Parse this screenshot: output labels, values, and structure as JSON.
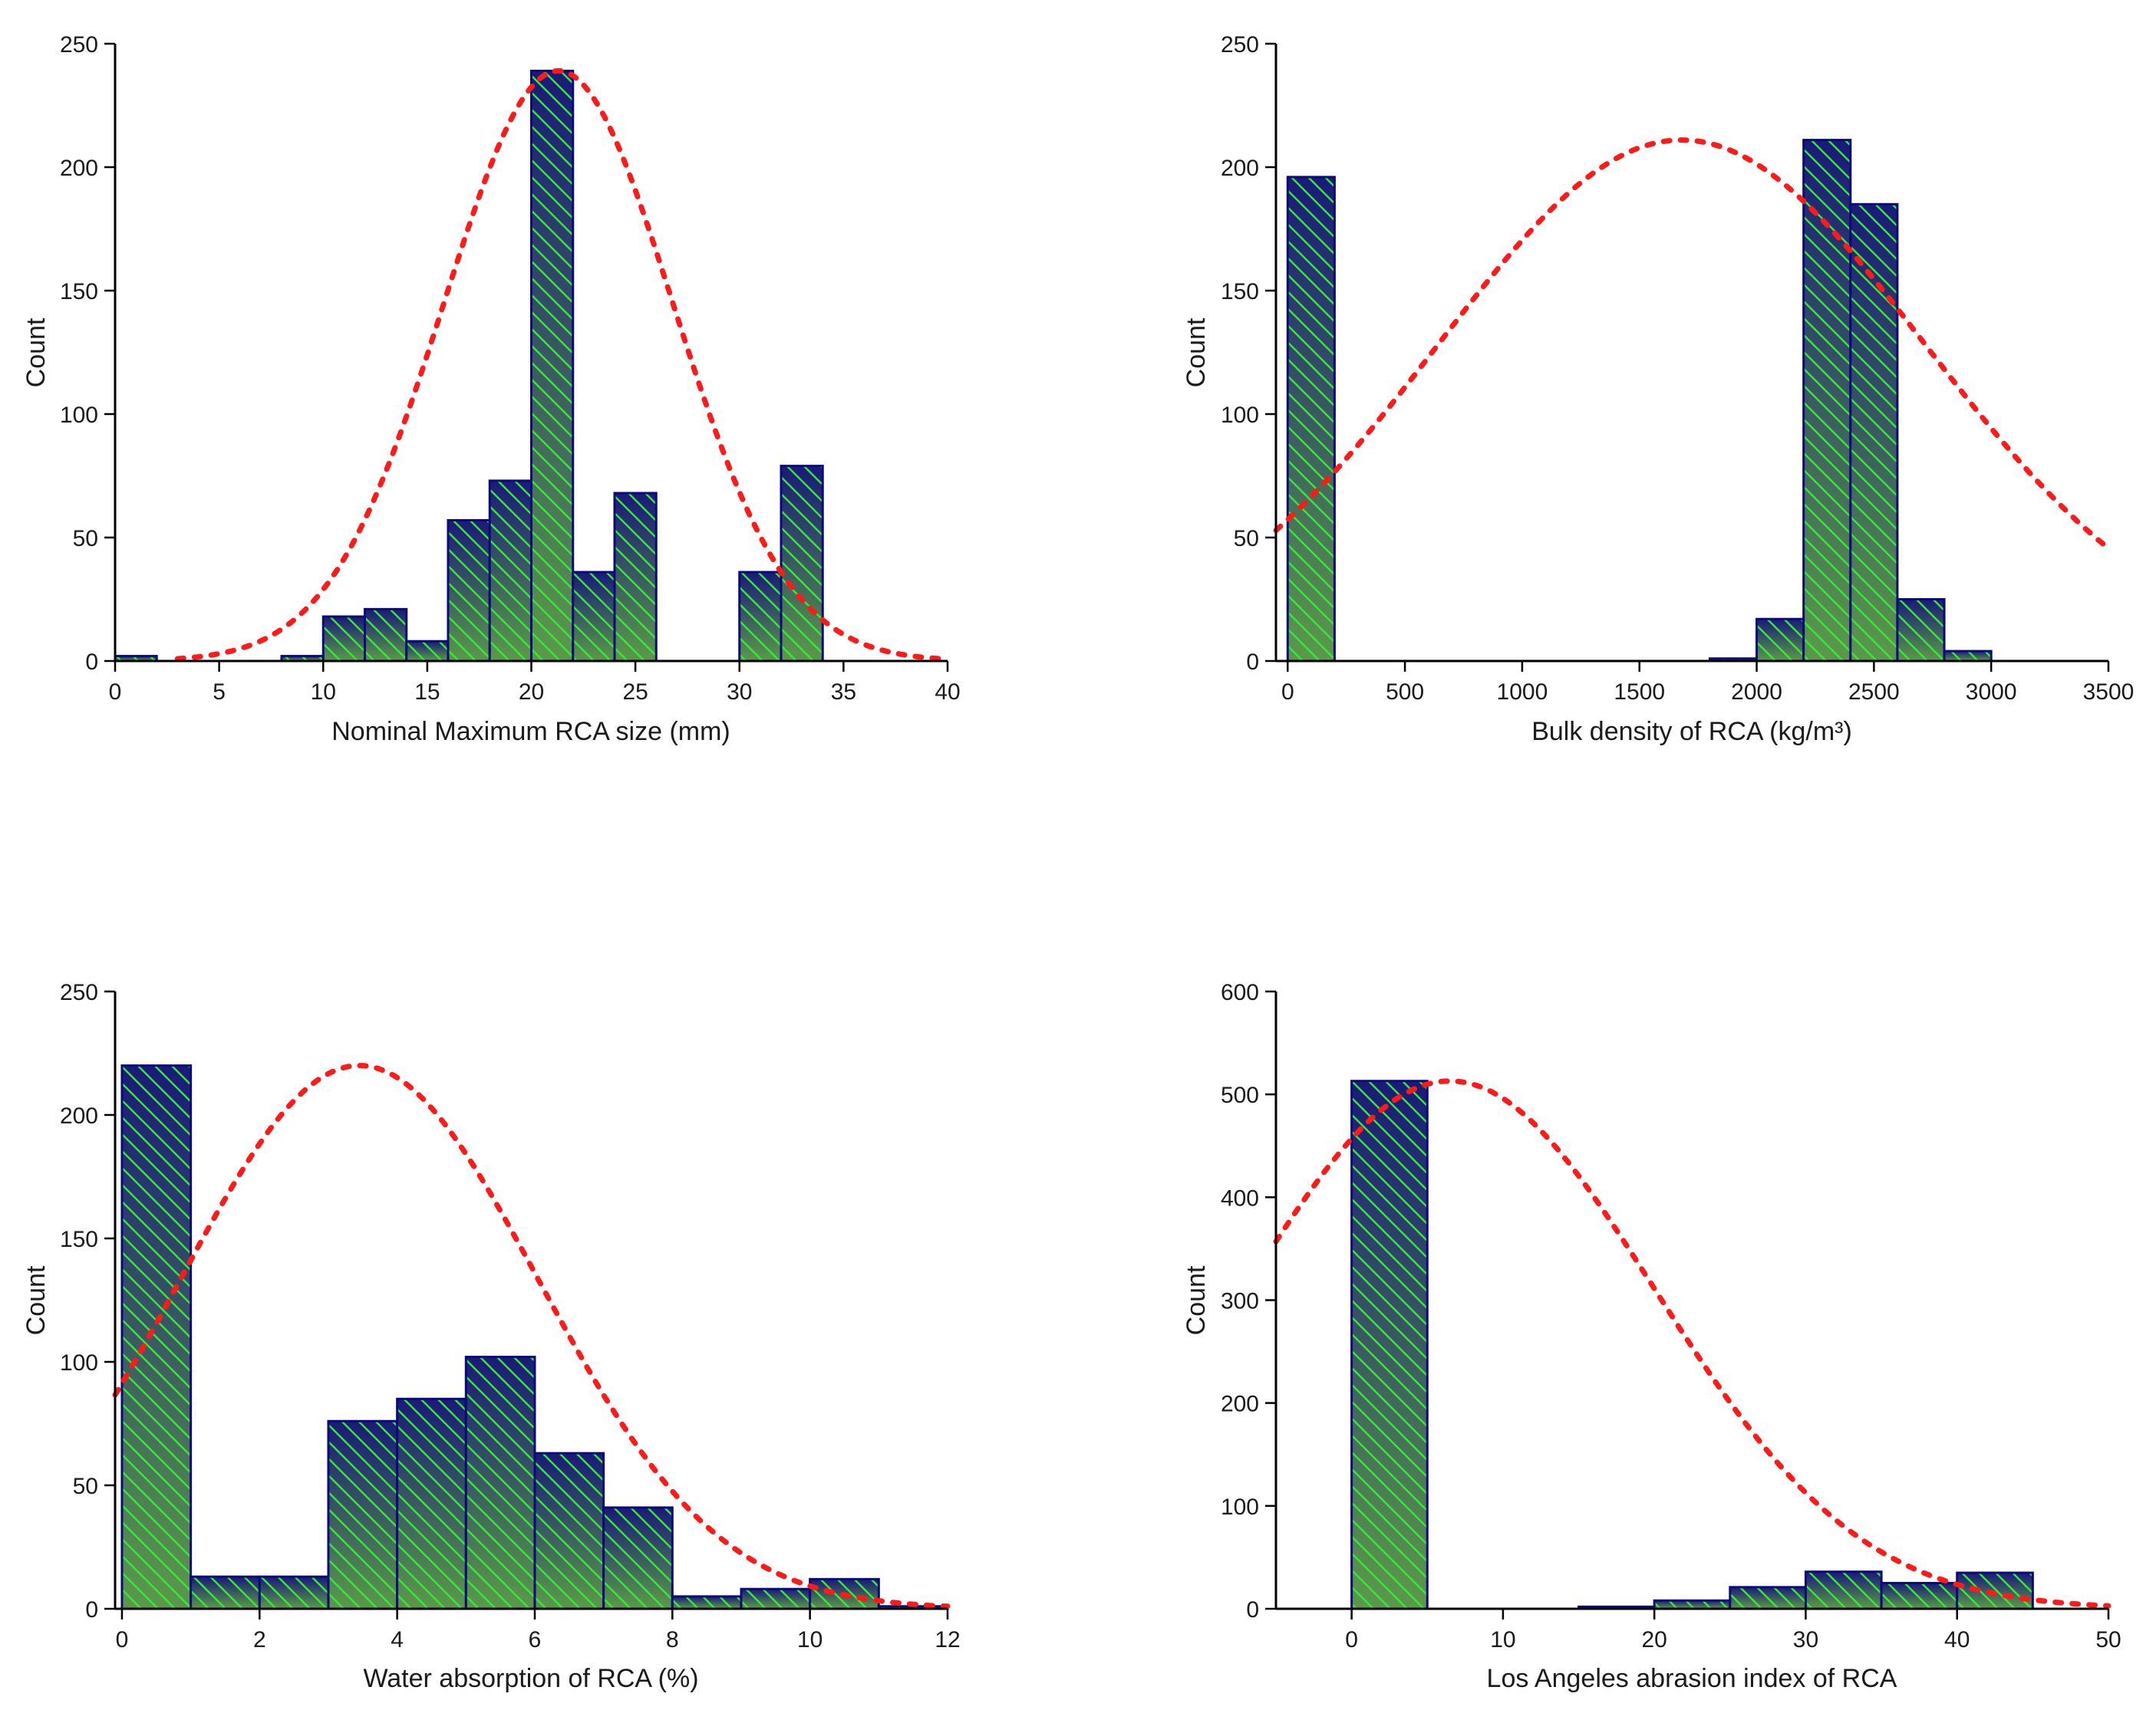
{
  "colors": {
    "bar_top": "#1a1a78",
    "bar_bottom": "#5a9a4a",
    "hatch": "#37e837",
    "bar_edge": "#0a0a7a",
    "fit_curve": "#ff1a1a",
    "axis": "#000000"
  },
  "chart_data": [
    {
      "type": "bar",
      "panel": "top-left",
      "title": "",
      "xlabel": "Nominal Maximum RCA size (mm)",
      "ylabel": "Count",
      "xlim": [
        0,
        40
      ],
      "ylim": [
        0,
        250
      ],
      "xticks": [
        0,
        5,
        10,
        15,
        20,
        25,
        30,
        35,
        40
      ],
      "yticks": [
        0,
        50,
        100,
        150,
        200,
        250
      ],
      "bins": [
        {
          "from": 0,
          "to": 2,
          "count": 2
        },
        {
          "from": 8,
          "to": 10,
          "count": 2
        },
        {
          "from": 10,
          "to": 12,
          "count": 18
        },
        {
          "from": 12,
          "to": 14,
          "count": 21
        },
        {
          "from": 14,
          "to": 16,
          "count": 8
        },
        {
          "from": 16,
          "to": 18,
          "count": 57
        },
        {
          "from": 18,
          "to": 20,
          "count": 73
        },
        {
          "from": 20,
          "to": 22,
          "count": 239
        },
        {
          "from": 22,
          "to": 24,
          "count": 36
        },
        {
          "from": 24,
          "to": 26,
          "count": 68
        },
        {
          "from": 30,
          "to": 32,
          "count": 36
        },
        {
          "from": 32,
          "to": 34,
          "count": 79
        }
      ],
      "fit": {
        "mean": 21.3,
        "sd": 5.5,
        "peak": 239,
        "x_range": [
          3,
          40
        ]
      }
    },
    {
      "type": "bar",
      "panel": "top-right",
      "title": "",
      "xlabel": "Bulk density of RCA (kg/m³)",
      "ylabel": "Count",
      "xlim": [
        -50,
        3500
      ],
      "ylim": [
        0,
        250
      ],
      "xticks": [
        0,
        500,
        1000,
        1500,
        2000,
        2500,
        3000,
        3500
      ],
      "yticks": [
        0,
        50,
        100,
        150,
        200,
        250
      ],
      "bins": [
        {
          "from": 0,
          "to": 200,
          "count": 196
        },
        {
          "from": 1800,
          "to": 2000,
          "count": 1
        },
        {
          "from": 2000,
          "to": 2200,
          "count": 17
        },
        {
          "from": 2200,
          "to": 2400,
          "count": 211
        },
        {
          "from": 2400,
          "to": 2600,
          "count": 185
        },
        {
          "from": 2600,
          "to": 2800,
          "count": 25
        },
        {
          "from": 2800,
          "to": 3000,
          "count": 4
        }
      ],
      "fit": {
        "mean": 1680,
        "sd": 1040,
        "peak": 211,
        "x_range": [
          -50,
          3500
        ]
      }
    },
    {
      "type": "bar",
      "panel": "bottom-left",
      "title": "",
      "xlabel": "Water absorption of RCA (%)",
      "ylabel": "Count",
      "xlim": [
        -0.1,
        12
      ],
      "ylim": [
        0,
        250
      ],
      "xticks": [
        0,
        2,
        4,
        6,
        8,
        10,
        12
      ],
      "yticks": [
        0,
        50,
        100,
        150,
        200,
        250
      ],
      "bins": [
        {
          "from": 0,
          "to": 1,
          "count": 220
        },
        {
          "from": 1,
          "to": 2,
          "count": 13
        },
        {
          "from": 2,
          "to": 3,
          "count": 13
        },
        {
          "from": 3,
          "to": 4,
          "count": 76
        },
        {
          "from": 4,
          "to": 5,
          "count": 85
        },
        {
          "from": 5,
          "to": 6,
          "count": 102
        },
        {
          "from": 6,
          "to": 7,
          "count": 63
        },
        {
          "from": 7,
          "to": 8,
          "count": 41
        },
        {
          "from": 8,
          "to": 9,
          "count": 5
        },
        {
          "from": 9,
          "to": 10,
          "count": 8
        },
        {
          "from": 10,
          "to": 11,
          "count": 12
        },
        {
          "from": 11,
          "to": 12,
          "count": 1
        }
      ],
      "fit": {
        "mean": 3.45,
        "sd": 2.6,
        "peak": 220,
        "x_range": [
          -0.1,
          12
        ]
      }
    },
    {
      "type": "bar",
      "panel": "bottom-right",
      "title": "",
      "xlabel": "Los Angeles abrasion index of RCA",
      "ylabel": "Count",
      "xlim": [
        -5,
        50
      ],
      "ylim": [
        0,
        600
      ],
      "xticks": [
        0,
        10,
        20,
        30,
        40,
        50
      ],
      "yticks": [
        0,
        100,
        200,
        300,
        400,
        500,
        600
      ],
      "bins": [
        {
          "from": 0,
          "to": 5,
          "count": 513
        },
        {
          "from": 15,
          "to": 20,
          "count": 2
        },
        {
          "from": 20,
          "to": 25,
          "count": 8
        },
        {
          "from": 25,
          "to": 30,
          "count": 21
        },
        {
          "from": 30,
          "to": 35,
          "count": 36
        },
        {
          "from": 35,
          "to": 40,
          "count": 25
        },
        {
          "from": 40,
          "to": 45,
          "count": 35
        }
      ],
      "fit": {
        "mean": 6.5,
        "sd": 13.5,
        "peak": 513,
        "x_range": [
          -5,
          50
        ]
      }
    }
  ]
}
